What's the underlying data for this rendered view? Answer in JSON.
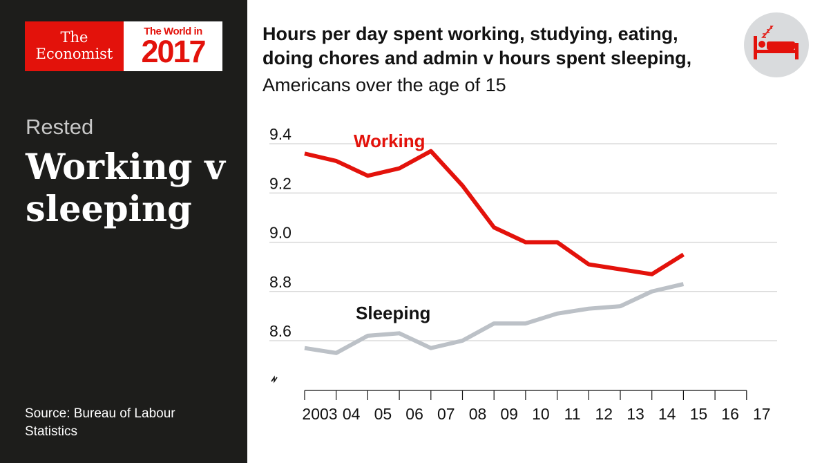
{
  "branding": {
    "publisher_line1": "The",
    "publisher_line2": "Economist",
    "edition_line1": "The World in",
    "edition_year": "2017"
  },
  "sidebar": {
    "kicker": "Rested",
    "headline": "Working v sleeping",
    "source": "Source: Bureau of Labour Statistics"
  },
  "icon": {
    "name": "bed-sleeping-icon"
  },
  "colors": {
    "brand_red": "#e3120b",
    "working_line": "#e3120b",
    "sleeping_line": "#bcc1c7",
    "gridline": "#d3d3d3",
    "sidebar_bg": "#1d1d1b"
  },
  "chart_data": {
    "type": "line",
    "title": "Hours per day spent working, studying, eating, doing chores and admin v hours spent sleeping,",
    "subtitle": "Americans over the age of 15",
    "x": [
      2003,
      2004,
      2005,
      2006,
      2007,
      2008,
      2009,
      2010,
      2011,
      2012,
      2013,
      2014,
      2015
    ],
    "x_tick_labels": [
      "2003",
      "04",
      "05",
      "06",
      "07",
      "08",
      "09",
      "10",
      "11",
      "12",
      "13",
      "14",
      "15",
      "16",
      "17"
    ],
    "xlim": [
      2003,
      2017
    ],
    "y_ticks": [
      8.6,
      8.8,
      9.0,
      9.2,
      9.4
    ],
    "y_tick_labels": [
      "8.6",
      "8.8",
      "9.0",
      "9.2",
      "9.4"
    ],
    "ylim": [
      8.6,
      9.4
    ],
    "axis_break": true,
    "series": [
      {
        "name": "Working",
        "label": "Working",
        "color": "#e3120b",
        "values": [
          9.36,
          9.33,
          9.27,
          9.3,
          9.37,
          9.23,
          9.06,
          9.0,
          9.0,
          8.91,
          8.89,
          8.87,
          8.95
        ]
      },
      {
        "name": "Sleeping",
        "label": "Sleeping",
        "color": "#bcc1c7",
        "values": [
          8.57,
          8.55,
          8.62,
          8.63,
          8.57,
          8.6,
          8.67,
          8.67,
          8.71,
          8.73,
          8.74,
          8.8,
          8.83
        ]
      }
    ]
  }
}
